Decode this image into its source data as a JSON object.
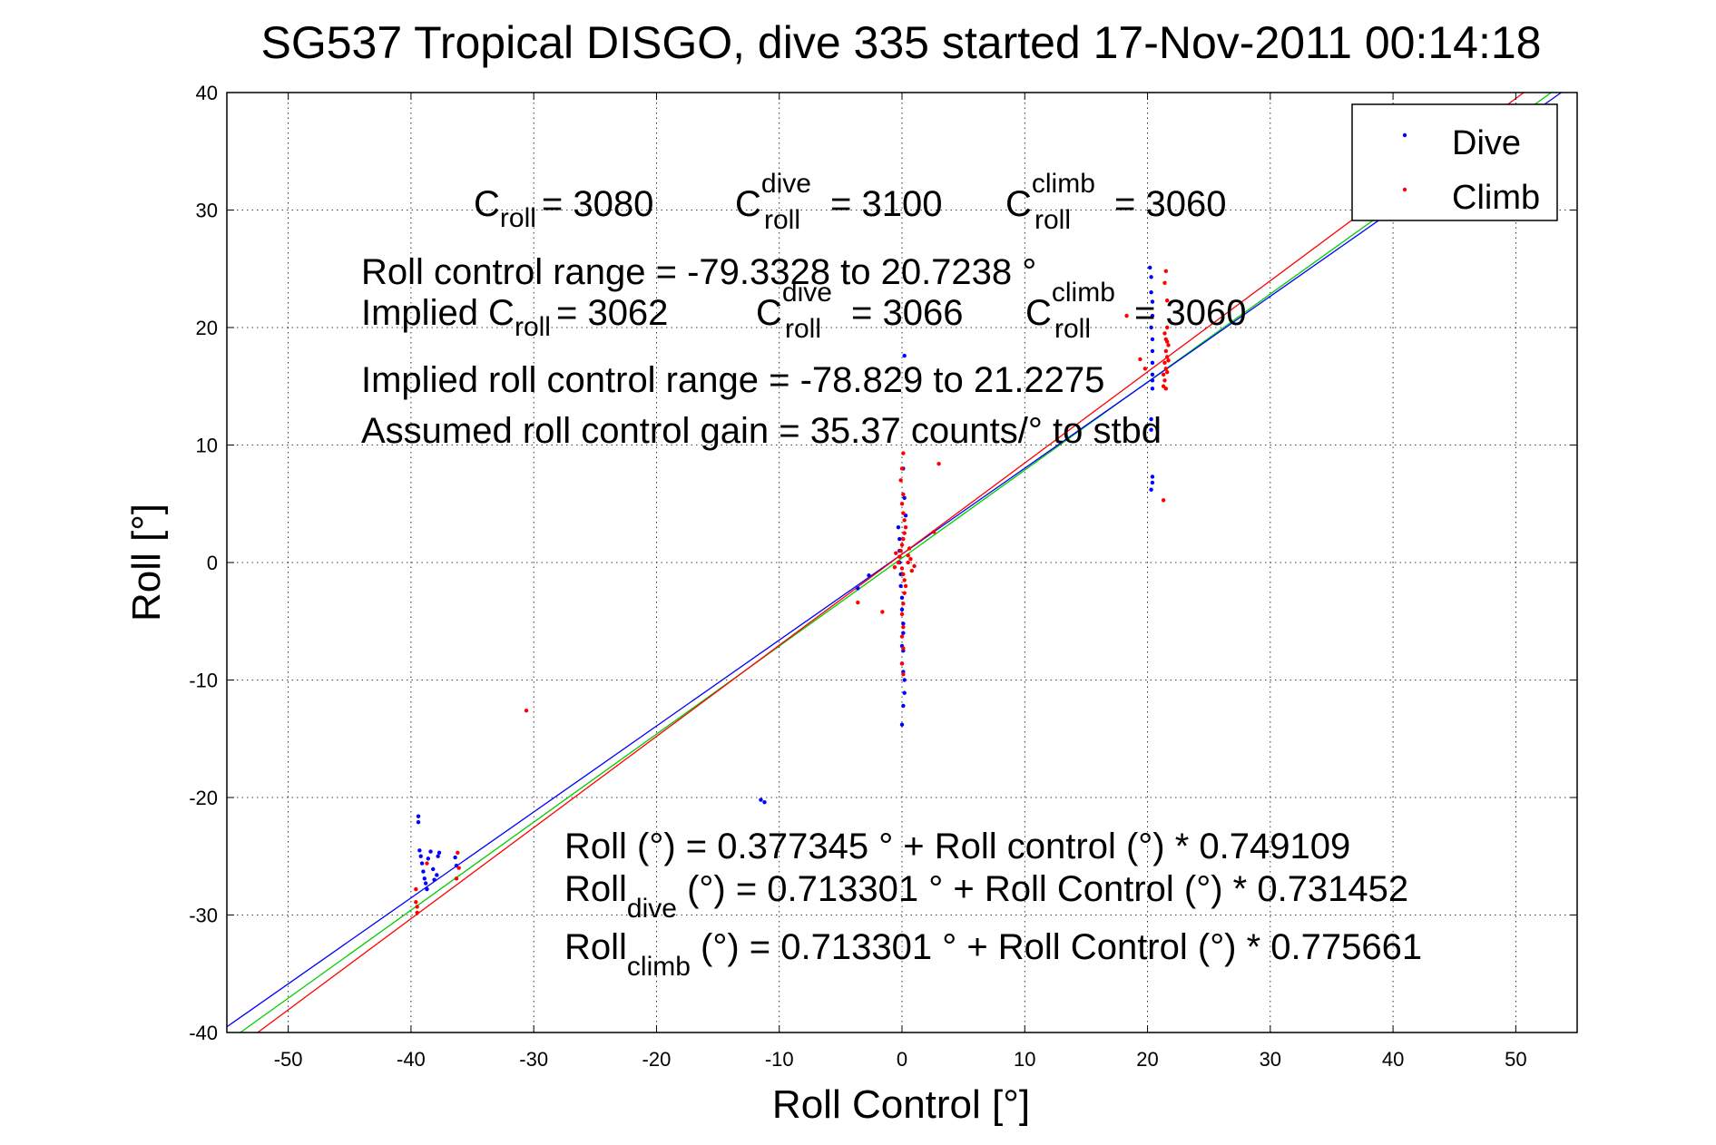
{
  "chart_data": {
    "type": "scatter",
    "title": "SG537 Tropical DISGO, dive 335 started 17-Nov-2011 00:14:18",
    "xlabel": "Roll Control [°]",
    "ylabel": "Roll [°]",
    "xlim": [
      -55,
      55
    ],
    "ylim": [
      -40,
      40
    ],
    "xticks": [
      -50,
      -40,
      -30,
      -20,
      -10,
      0,
      10,
      20,
      30,
      40,
      50
    ],
    "yticks": [
      -40,
      -30,
      -20,
      -10,
      0,
      10,
      20,
      30,
      40
    ],
    "grid": true,
    "legend": {
      "position": "top-right",
      "entries": [
        "Dive",
        "Climb"
      ]
    },
    "colors": {
      "dive": "#0000ff",
      "climb": "#ff0000",
      "fit_all": "#00cc00"
    },
    "series": [
      {
        "name": "Dive",
        "color": "#0000ff",
        "points": [
          [
            -39.4,
            -21.6
          ],
          [
            -39.4,
            -22.1
          ],
          [
            -39.3,
            -24.5
          ],
          [
            -39.2,
            -25.0
          ],
          [
            -39.1,
            -25.6
          ],
          [
            -39.0,
            -26.3
          ],
          [
            -38.9,
            -26.9
          ],
          [
            -38.8,
            -27.3
          ],
          [
            -38.7,
            -27.8
          ],
          [
            -38.6,
            -25.2
          ],
          [
            -38.4,
            -24.6
          ],
          [
            -38.2,
            -26.1
          ],
          [
            -38.1,
            -27.0
          ],
          [
            -37.9,
            -26.6
          ],
          [
            -37.8,
            -25.0
          ],
          [
            -37.7,
            -24.7
          ],
          [
            -36.4,
            -25.1
          ],
          [
            -36.3,
            -25.8
          ],
          [
            -11.5,
            -20.2
          ],
          [
            -11.2,
            -20.4
          ],
          [
            -3.6,
            -2.2
          ],
          [
            -2.7,
            -1.1
          ],
          [
            -0.3,
            3.0
          ],
          [
            -0.2,
            2.0
          ],
          [
            -0.2,
            1.0
          ],
          [
            -0.2,
            0.0
          ],
          [
            -0.1,
            -1.0
          ],
          [
            -0.1,
            -2.0
          ],
          [
            0.0,
            -3.0
          ],
          [
            0.0,
            -4.0
          ],
          [
            0.1,
            -5.2
          ],
          [
            0.1,
            -6.0
          ],
          [
            0.0,
            -7.1
          ],
          [
            0.0,
            -8.6
          ],
          [
            0.1,
            -9.3
          ],
          [
            0.2,
            -10.0
          ],
          [
            0.2,
            -11.1
          ],
          [
            0.1,
            -12.2
          ],
          [
            0.0,
            -13.8
          ],
          [
            0.1,
            -7.5
          ],
          [
            0.2,
            17.6
          ],
          [
            0.1,
            8.0
          ],
          [
            0.2,
            5.5
          ],
          [
            0.3,
            4.0
          ],
          [
            20.2,
            25.1
          ],
          [
            20.3,
            24.3
          ],
          [
            20.3,
            23.0
          ],
          [
            20.4,
            22.2
          ],
          [
            20.4,
            21.0
          ],
          [
            20.3,
            20.0
          ],
          [
            20.4,
            19.0
          ],
          [
            20.4,
            18.0
          ],
          [
            20.4,
            17.0
          ],
          [
            20.4,
            16.0
          ],
          [
            20.4,
            15.5
          ],
          [
            20.4,
            14.8
          ],
          [
            20.3,
            12.2
          ],
          [
            20.3,
            11.3
          ],
          [
            20.4,
            7.3
          ],
          [
            20.4,
            6.8
          ],
          [
            20.3,
            6.2
          ]
        ]
      },
      {
        "name": "Climb",
        "color": "#ff0000",
        "points": [
          [
            -39.6,
            -27.8
          ],
          [
            -39.6,
            -28.9
          ],
          [
            -39.5,
            -29.3
          ],
          [
            -39.5,
            -29.8
          ],
          [
            -38.7,
            -25.6
          ],
          [
            -36.2,
            -24.7
          ],
          [
            -36.1,
            -26.0
          ],
          [
            -36.3,
            -26.9
          ],
          [
            -30.6,
            -12.6
          ],
          [
            -3.6,
            -3.4
          ],
          [
            -1.6,
            -4.2
          ],
          [
            2.6,
            2.6
          ],
          [
            3.0,
            8.4
          ],
          [
            -0.3,
            0.0
          ],
          [
            -0.2,
            0.5
          ],
          [
            -0.1,
            1.0
          ],
          [
            0.0,
            1.5
          ],
          [
            0.1,
            2.0
          ],
          [
            0.2,
            2.5
          ],
          [
            0.3,
            3.0
          ],
          [
            0.2,
            3.6
          ],
          [
            0.1,
            4.2
          ],
          [
            0.0,
            5.0
          ],
          [
            0.1,
            5.8
          ],
          [
            -0.1,
            7.0
          ],
          [
            0.0,
            8.0
          ],
          [
            0.1,
            9.3
          ],
          [
            0.0,
            -0.5
          ],
          [
            0.1,
            -1.0
          ],
          [
            0.2,
            -1.5
          ],
          [
            0.3,
            -2.0
          ],
          [
            0.2,
            -2.6
          ],
          [
            0.1,
            -3.5
          ],
          [
            0.0,
            -4.4
          ],
          [
            0.1,
            -5.5
          ],
          [
            0.0,
            -6.3
          ],
          [
            0.1,
            -7.3
          ],
          [
            0.0,
            -8.6
          ],
          [
            0.1,
            -9.5
          ],
          [
            0.5,
            0.0
          ],
          [
            0.5,
            0.6
          ],
          [
            0.6,
            1.2
          ],
          [
            0.7,
            0.3
          ],
          [
            0.8,
            -0.7
          ],
          [
            1.0,
            -0.3
          ],
          [
            -0.5,
            0.8
          ],
          [
            -0.6,
            -0.4
          ],
          [
            18.3,
            21.0
          ],
          [
            19.4,
            17.3
          ],
          [
            19.8,
            16.5
          ],
          [
            21.3,
            15.0
          ],
          [
            21.3,
            16.0
          ],
          [
            21.4,
            17.0
          ],
          [
            21.5,
            18.0
          ],
          [
            21.5,
            19.0
          ],
          [
            21.6,
            20.0
          ],
          [
            21.4,
            15.5
          ],
          [
            21.5,
            16.5
          ],
          [
            21.6,
            17.5
          ],
          [
            21.7,
            18.5
          ],
          [
            21.5,
            14.8
          ],
          [
            21.6,
            16.2
          ],
          [
            21.7,
            17.2
          ],
          [
            21.6,
            18.8
          ],
          [
            21.4,
            19.5
          ],
          [
            21.5,
            24.8
          ],
          [
            21.4,
            23.8
          ],
          [
            21.6,
            22.3
          ],
          [
            21.3,
            5.3
          ]
        ]
      }
    ],
    "fits": [
      {
        "name": "Roll",
        "color": "#00cc00",
        "intercept": 0.377345,
        "slope": 0.749109
      },
      {
        "name": "Roll dive",
        "color": "#0000ff",
        "intercept": 0.713301,
        "slope": 0.731452
      },
      {
        "name": "Roll climb",
        "color": "#ff0000",
        "intercept": 0.713301,
        "slope": 0.775661
      }
    ],
    "annotations": {
      "line1": {
        "c_roll": "C",
        "c_roll_sub": "roll",
        "c_roll_val": "= 3080",
        "c_dive": "C",
        "c_dive_sup": "dive",
        "c_dive_sub": "roll",
        "c_dive_val": "= 3100",
        "c_climb": "C",
        "c_climb_sup": "climb",
        "c_climb_sub": "roll",
        "c_climb_val": "= 3060"
      },
      "range": "Roll control range = -79.3328 to 20.7238 °",
      "line3": {
        "implied": "Implied C",
        "implied_sub": "roll",
        "implied_val": "= 3062",
        "c_dive": "C",
        "c_dive_sup": "dive",
        "c_dive_sub": "roll",
        "c_dive_val": "= 3066",
        "c_climb": "C",
        "c_climb_sup": "climb",
        "c_climb_sub": "roll",
        "c_climb_val": "= 3060"
      },
      "implied_range": "Implied roll control range = -78.829 to 21.2275",
      "gain": "Assumed roll control gain = 35.37 counts/° to stbd",
      "fit1": "Roll (°) = 0.377345 ° + Roll control (°) * 0.749109",
      "fit2_main": "Roll",
      "fit2_sub": "dive",
      "fit2_rest": " (°) = 0.713301 ° + Roll Control (°) * 0.731452",
      "fit3_main": "Roll",
      "fit3_sub": "climb",
      "fit3_rest": " (°) = 0.713301 ° + Roll Control (°) * 0.775661"
    }
  }
}
